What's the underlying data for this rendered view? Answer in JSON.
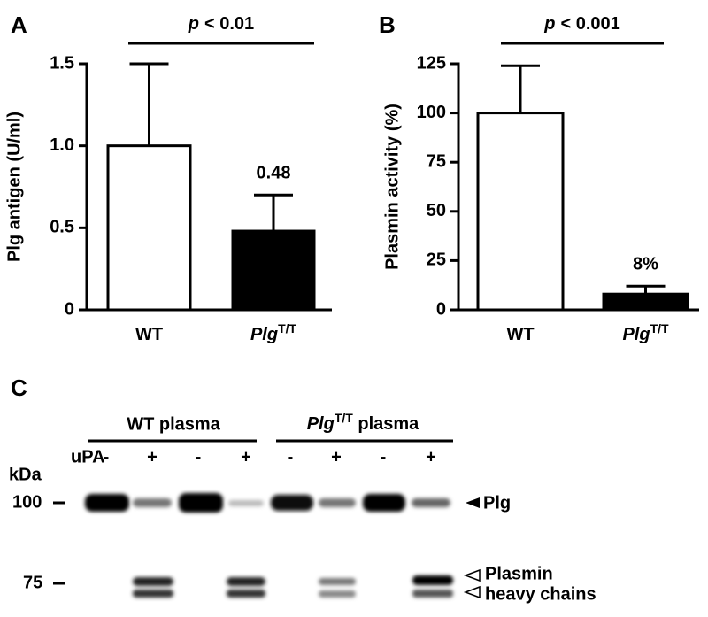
{
  "chart_data": [
    {
      "type": "bar",
      "panel_label": "A",
      "y_label": "Plg antigen (U/ml)",
      "categories": [
        "WT",
        "Plg"
      ],
      "category_superscript": "T/T",
      "values": [
        1.0,
        0.48
      ],
      "errors": [
        0.5,
        0.22
      ],
      "value_labels": [
        null,
        "0.48"
      ],
      "colors": [
        "#ffffff",
        "#000000"
      ],
      "ylim": [
        0,
        1.5
      ],
      "yticks": [
        0,
        0.5,
        {
          "value": 1,
          "label": "1.0"
        },
        1.5
      ],
      "significance_p": "p",
      "significance_text": "< 0.01"
    },
    {
      "type": "bar",
      "panel_label": "B",
      "y_label": "Plasmin activity (%)",
      "categories": [
        "WT",
        "Plg"
      ],
      "category_superscript": "T/T",
      "values": [
        100,
        8
      ],
      "errors": [
        24,
        4
      ],
      "value_labels": [
        null,
        "8%"
      ],
      "colors": [
        "#ffffff",
        "#000000"
      ],
      "ylim": [
        0,
        125
      ],
      "yticks": [
        0,
        25,
        50,
        75,
        100,
        125
      ],
      "significance_p": "p",
      "significance_text": "< 0.001"
    }
  ],
  "blot": {
    "panel_label": "C",
    "group1": "WT plasma",
    "group2_italic": "Plg",
    "group2_superscript": "T/T",
    "group2_rest": " plasma",
    "row_label": "uPA",
    "lanes": [
      "-",
      "+",
      "-",
      "+",
      "-",
      "+",
      "-",
      "+"
    ],
    "unit": "kDa",
    "markers": [
      "100",
      "75"
    ],
    "band1": "Plg",
    "band2_line1": "Plasmin",
    "band2_line2": "heavy chains"
  }
}
